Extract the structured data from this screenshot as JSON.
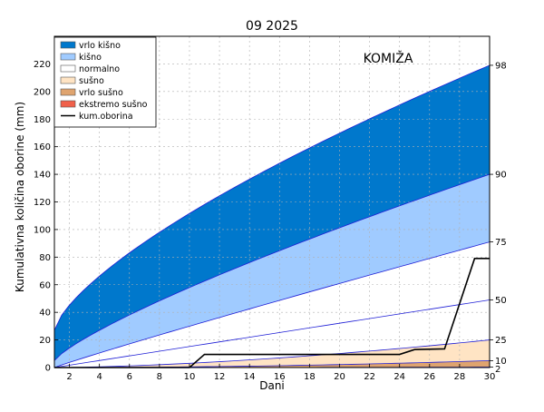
{
  "chart_data": {
    "type": "area",
    "title": "09 2025",
    "annotation": "KOMIŽA",
    "xlabel": "Dani",
    "ylabel": "Kumulativna količina oborine (mm)",
    "xlim": [
      1,
      30
    ],
    "ylim": [
      0,
      240
    ],
    "x_ticks": [
      "2",
      "4",
      "6",
      "8",
      "10",
      "12",
      "14",
      "16",
      "18",
      "20",
      "22",
      "24",
      "26",
      "28",
      "30"
    ],
    "y_ticks": [
      "0",
      "20",
      "40",
      "60",
      "80",
      "100",
      "120",
      "140",
      "160",
      "180",
      "200",
      "220"
    ],
    "grid": true,
    "legend_position": "top-left",
    "x": [
      1,
      30
    ],
    "percentile_curves": [
      {
        "label": "98",
        "start": 27,
        "end": 219,
        "exponent": 0.7
      },
      {
        "label": "90",
        "start": 5,
        "end": 140,
        "exponent": 0.8
      },
      {
        "label": "75",
        "start": 0,
        "end": 91,
        "exponent": 0.95
      },
      {
        "label": "50",
        "start": 0,
        "end": 49,
        "exponent": 1.0
      },
      {
        "label": "25",
        "start": 0,
        "end": 20,
        "exponent": 1.6
      },
      {
        "label": "10",
        "start": 0,
        "end": 5,
        "exponent": 2.0
      },
      {
        "label": "2",
        "start": 0,
        "end": 0.3,
        "exponent": 2.0
      }
    ],
    "bands": [
      {
        "name": "vrlo kišno",
        "from": "90",
        "to": "98",
        "color": "#0078cc"
      },
      {
        "name": "kišno",
        "from": "75",
        "to": "90",
        "color": "#a0cbff"
      },
      {
        "name": "normalno",
        "from": "25",
        "to": "75",
        "color": "#ffffff"
      },
      {
        "name": "sušno",
        "from": "10",
        "to": "25",
        "color": "#ffe4c4"
      },
      {
        "name": "vrlo sušno",
        "from": "2",
        "to": "10",
        "color": "#dfa46f"
      },
      {
        "name": "ekstremo sušno",
        "from": "0",
        "to": "2",
        "color": "#f0604a"
      }
    ],
    "series": [
      {
        "name": "kum.oborina",
        "x": [
          1,
          10,
          11,
          24,
          25,
          27,
          29,
          30
        ],
        "values": [
          0,
          0,
          9.5,
          9.5,
          13,
          13.5,
          79,
          79
        ],
        "color": "#000000"
      }
    ]
  }
}
